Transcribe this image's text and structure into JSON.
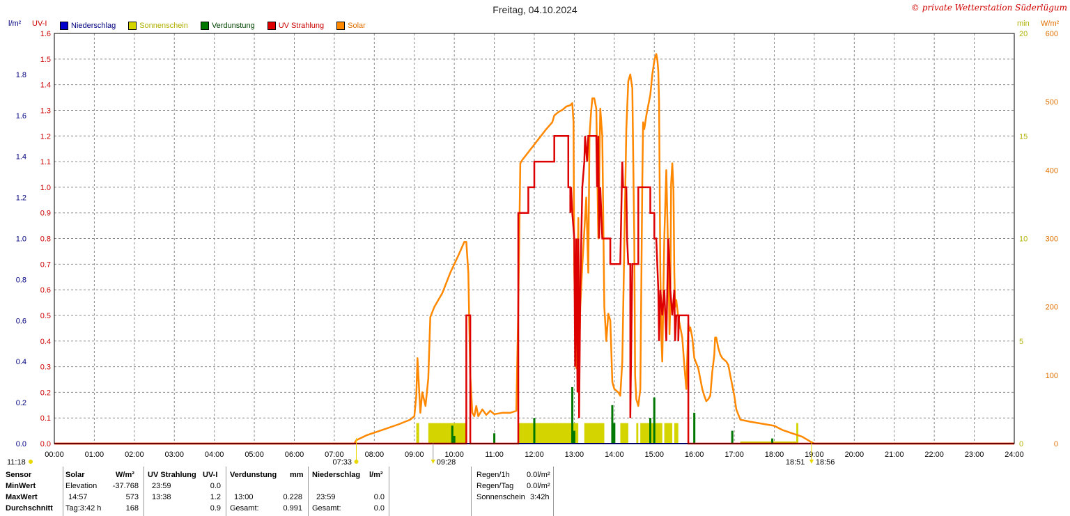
{
  "header": {
    "title": "Freitag, 04.10.2024",
    "copyright": "© private Wetterstation Süderlügum"
  },
  "axes": {
    "left_outer_unit": "l/m²",
    "left_inner_unit": "UV-I",
    "right_inner_unit": "min",
    "right_outer_unit": "W/m²",
    "left_outer_ticks": [
      "0.0",
      "0.2",
      "0.4",
      "0.6",
      "0.8",
      "1.0",
      "1.2",
      "1.4",
      "1.6",
      "1.8"
    ],
    "left_inner_ticks": [
      "0.0",
      "0.1",
      "0.2",
      "0.3",
      "0.4",
      "0.5",
      "0.6",
      "0.7",
      "0.8",
      "0.9",
      "1.0",
      "1.1",
      "1.2",
      "1.3",
      "1.4",
      "1.5",
      "1.6"
    ],
    "right_inner_ticks": [
      "0",
      "5",
      "10",
      "15",
      "20"
    ],
    "right_outer_ticks": [
      "0",
      "100",
      "200",
      "300",
      "400",
      "500",
      "600"
    ],
    "x_ticks": [
      "00:00",
      "01:00",
      "02:00",
      "03:00",
      "04:00",
      "05:00",
      "06:00",
      "07:00",
      "08:00",
      "09:00",
      "10:00",
      "11:00",
      "12:00",
      "13:00",
      "14:00",
      "15:00",
      "16:00",
      "17:00",
      "18:00",
      "19:00",
      "20:00",
      "21:00",
      "22:00",
      "23:00",
      "24:00"
    ],
    "markers": {
      "current_time": "11:18",
      "sunrise": "07:33",
      "sun_event_1": "09:28",
      "sun_event_2": "18:51",
      "sunset": "18:56"
    }
  },
  "colors": {
    "niederschlag": "#0000cc",
    "sonnenschein": "#d4d400",
    "verdunstung": "#007700",
    "uv": "#dd0000",
    "solar": "#ff8800",
    "grid": "#888888"
  },
  "legend": [
    {
      "name": "Niederschlag",
      "color": "#0000cc",
      "text_color": "#000080"
    },
    {
      "name": "Sonnenschein",
      "color": "#d4d400",
      "text_color": "#b0b000"
    },
    {
      "name": "Verdunstung",
      "color": "#007700",
      "text_color": "#004400"
    },
    {
      "name": "UV Strahlung",
      "color": "#dd0000",
      "text_color": "#cc0000"
    },
    {
      "name": "Solar",
      "color": "#ff8800",
      "text_color": "#e07000"
    }
  ],
  "chart_data": {
    "type": "line",
    "title": "Freitag, 04.10.2024",
    "x_unit": "hours",
    "xlim": [
      0,
      24
    ],
    "solar_ylim": [
      0,
      600
    ],
    "uv_ylim": [
      0,
      1.6
    ],
    "sunshine_ylim": [
      0,
      20
    ],
    "rain_ylim": [
      0,
      2.0
    ],
    "series": [
      {
        "name": "Solar",
        "unit": "W/m²",
        "points": [
          [
            0,
            0
          ],
          [
            7.5,
            0
          ],
          [
            7.55,
            5
          ],
          [
            7.8,
            12
          ],
          [
            8.2,
            20
          ],
          [
            8.6,
            28
          ],
          [
            8.9,
            35
          ],
          [
            9.0,
            40
          ],
          [
            9.05,
            70
          ],
          [
            9.08,
            125
          ],
          [
            9.12,
            80
          ],
          [
            9.15,
            45
          ],
          [
            9.2,
            75
          ],
          [
            9.28,
            55
          ],
          [
            9.35,
            95
          ],
          [
            9.4,
            185
          ],
          [
            9.5,
            200
          ],
          [
            9.7,
            220
          ],
          [
            9.9,
            250
          ],
          [
            10.1,
            275
          ],
          [
            10.25,
            295
          ],
          [
            10.3,
            295
          ],
          [
            10.35,
            250
          ],
          [
            10.4,
            100
          ],
          [
            10.45,
            45
          ],
          [
            10.5,
            40
          ],
          [
            10.55,
            55
          ],
          [
            10.6,
            40
          ],
          [
            10.7,
            50
          ],
          [
            10.8,
            42
          ],
          [
            10.9,
            48
          ],
          [
            11.0,
            43
          ],
          [
            11.2,
            45
          ],
          [
            11.4,
            45
          ],
          [
            11.55,
            48
          ],
          [
            11.6,
            200
          ],
          [
            11.65,
            410
          ],
          [
            11.7,
            415
          ],
          [
            11.9,
            430
          ],
          [
            12.1,
            445
          ],
          [
            12.3,
            460
          ],
          [
            12.45,
            470
          ],
          [
            12.5,
            480
          ],
          [
            12.6,
            485
          ],
          [
            12.7,
            488
          ],
          [
            12.8,
            493
          ],
          [
            12.9,
            495
          ],
          [
            12.95,
            498
          ],
          [
            12.98,
            470
          ],
          [
            13.0,
            250
          ],
          [
            13.05,
            110
          ],
          [
            13.1,
            330
          ],
          [
            13.12,
            120
          ],
          [
            13.15,
            200
          ],
          [
            13.2,
            260
          ],
          [
            13.3,
            360
          ],
          [
            13.35,
            250
          ],
          [
            13.38,
            450
          ],
          [
            13.42,
            485
          ],
          [
            13.45,
            505
          ],
          [
            13.5,
            505
          ],
          [
            13.55,
            490
          ],
          [
            13.6,
            300
          ],
          [
            13.65,
            490
          ],
          [
            13.7,
            450
          ],
          [
            13.75,
            200
          ],
          [
            13.8,
            150
          ],
          [
            13.85,
            190
          ],
          [
            13.9,
            180
          ],
          [
            13.95,
            90
          ],
          [
            14.0,
            80
          ],
          [
            14.1,
            75
          ],
          [
            14.15,
            70
          ],
          [
            14.2,
            120
          ],
          [
            14.3,
            460
          ],
          [
            14.35,
            530
          ],
          [
            14.4,
            540
          ],
          [
            14.45,
            520
          ],
          [
            14.5,
            300
          ],
          [
            14.52,
            100
          ],
          [
            14.55,
            65
          ],
          [
            14.6,
            55
          ],
          [
            14.65,
            80
          ],
          [
            14.7,
            380
          ],
          [
            14.72,
            470
          ],
          [
            14.75,
            460
          ],
          [
            14.8,
            480
          ],
          [
            14.9,
            510
          ],
          [
            14.95,
            540
          ],
          [
            15.0,
            560
          ],
          [
            15.02,
            565
          ],
          [
            15.05,
            570
          ],
          [
            15.08,
            560
          ],
          [
            15.1,
            545
          ],
          [
            15.12,
            500
          ],
          [
            15.15,
            250
          ],
          [
            15.18,
            150
          ],
          [
            15.2,
            120
          ],
          [
            15.25,
            300
          ],
          [
            15.3,
            400
          ],
          [
            15.35,
            270
          ],
          [
            15.38,
            160
          ],
          [
            15.4,
            200
          ],
          [
            15.42,
            380
          ],
          [
            15.45,
            410
          ],
          [
            15.48,
            370
          ],
          [
            15.5,
            250
          ],
          [
            15.52,
            200
          ],
          [
            15.55,
            210
          ],
          [
            15.6,
            185
          ],
          [
            15.65,
            170
          ],
          [
            15.7,
            155
          ],
          [
            15.75,
            115
          ],
          [
            15.8,
            80
          ],
          [
            15.85,
            175
          ],
          [
            15.88,
            165
          ],
          [
            15.9,
            170
          ],
          [
            15.95,
            155
          ],
          [
            16.0,
            125
          ],
          [
            16.1,
            110
          ],
          [
            16.2,
            80
          ],
          [
            16.25,
            70
          ],
          [
            16.3,
            62
          ],
          [
            16.35,
            65
          ],
          [
            16.4,
            70
          ],
          [
            16.45,
            105
          ],
          [
            16.5,
            130
          ],
          [
            16.52,
            155
          ],
          [
            16.55,
            155
          ],
          [
            16.6,
            140
          ],
          [
            16.65,
            130
          ],
          [
            16.7,
            125
          ],
          [
            16.8,
            120
          ],
          [
            16.85,
            115
          ],
          [
            16.9,
            100
          ],
          [
            17.0,
            70
          ],
          [
            17.05,
            50
          ],
          [
            17.15,
            35
          ],
          [
            17.4,
            32
          ],
          [
            17.8,
            28
          ],
          [
            18.0,
            26
          ],
          [
            18.2,
            20
          ],
          [
            18.45,
            15
          ],
          [
            18.6,
            12
          ],
          [
            18.7,
            10
          ],
          [
            18.9,
            3
          ],
          [
            19.0,
            0
          ],
          [
            24.0,
            0
          ]
        ]
      },
      {
        "name": "UV Strahlung",
        "unit": "UV-I",
        "points": [
          [
            0,
            0
          ],
          [
            10.3,
            0
          ],
          [
            10.3,
            0.5
          ],
          [
            10.4,
            0.5
          ],
          [
            10.4,
            0
          ],
          [
            11.6,
            0
          ],
          [
            11.6,
            0.9
          ],
          [
            11.85,
            0.9
          ],
          [
            11.85,
            1.0
          ],
          [
            12.0,
            1.0
          ],
          [
            12.0,
            1.1
          ],
          [
            12.5,
            1.1
          ],
          [
            12.5,
            1.2
          ],
          [
            12.85,
            1.2
          ],
          [
            12.85,
            1.0
          ],
          [
            12.9,
            1.0
          ],
          [
            12.9,
            0.9
          ],
          [
            12.92,
            1.0
          ],
          [
            12.95,
            0.9
          ],
          [
            13.0,
            0.8
          ],
          [
            13.02,
            0.3
          ],
          [
            13.05,
            0.8
          ],
          [
            13.08,
            0.2
          ],
          [
            13.1,
            0.8
          ],
          [
            13.12,
            0.1
          ],
          [
            13.15,
            0.6
          ],
          [
            13.2,
            1.0
          ],
          [
            13.25,
            1.1
          ],
          [
            13.27,
            1.2
          ],
          [
            13.32,
            1.1
          ],
          [
            13.35,
            1.2
          ],
          [
            13.55,
            1.2
          ],
          [
            13.57,
            1.0
          ],
          [
            13.6,
            1.2
          ],
          [
            13.62,
            0.8
          ],
          [
            13.65,
            1.0
          ],
          [
            13.7,
            0.8
          ],
          [
            13.9,
            0.8
          ],
          [
            13.9,
            0.7
          ],
          [
            14.15,
            0.7
          ],
          [
            14.2,
            1.1
          ],
          [
            14.22,
            1.0
          ],
          [
            14.3,
            1.0
          ],
          [
            14.32,
            0.8
          ],
          [
            14.35,
            0.7
          ],
          [
            14.4,
            0.7
          ],
          [
            14.4,
            0.1
          ],
          [
            14.45,
            0.7
          ],
          [
            14.6,
            0.7
          ],
          [
            14.6,
            1.0
          ],
          [
            14.9,
            1.0
          ],
          [
            14.9,
            0.9
          ],
          [
            15.0,
            0.9
          ],
          [
            15.0,
            0.8
          ],
          [
            15.05,
            0.8
          ],
          [
            15.1,
            0.6
          ],
          [
            15.12,
            0.4
          ],
          [
            15.15,
            0.6
          ],
          [
            15.2,
            0.5
          ],
          [
            15.25,
            0.6
          ],
          [
            15.3,
            0.4
          ],
          [
            15.35,
            0.8
          ],
          [
            15.38,
            0.7
          ],
          [
            15.4,
            0.6
          ],
          [
            15.45,
            0.5
          ],
          [
            15.5,
            0.6
          ],
          [
            15.52,
            0.4
          ],
          [
            15.55,
            0.5
          ],
          [
            15.6,
            0.5
          ],
          [
            15.6,
            0.4
          ],
          [
            15.62,
            0.5
          ],
          [
            15.85,
            0.5
          ],
          [
            15.85,
            0
          ],
          [
            24.0,
            0
          ]
        ]
      },
      {
        "name": "Sonnenschein",
        "unit": "min",
        "intervals": [
          [
            9.05,
            9.12,
            1
          ],
          [
            9.35,
            10.3,
            1
          ],
          [
            11.6,
            13.1,
            1
          ],
          [
            13.25,
            13.75,
            1
          ],
          [
            14.15,
            14.35,
            1
          ],
          [
            14.55,
            14.6,
            1
          ],
          [
            14.65,
            15.0,
            1
          ],
          [
            15.0,
            15.2,
            1
          ],
          [
            15.25,
            15.45,
            1
          ],
          [
            15.5,
            15.6,
            1
          ],
          [
            17.15,
            18.55,
            0.1
          ],
          [
            18.55,
            18.6,
            1
          ]
        ]
      },
      {
        "name": "Verdunstung",
        "unit": "mm",
        "spikes": [
          [
            9.95,
            0.07
          ],
          [
            10.0,
            0.03
          ],
          [
            11.0,
            0.04
          ],
          [
            12.0,
            0.1
          ],
          [
            12.95,
            0.22
          ],
          [
            13.0,
            0.05
          ],
          [
            13.95,
            0.15
          ],
          [
            14.0,
            0.08
          ],
          [
            14.9,
            0.1
          ],
          [
            15.0,
            0.18
          ],
          [
            16.0,
            0.12
          ],
          [
            16.95,
            0.05
          ],
          [
            17.95,
            0.02
          ]
        ]
      },
      {
        "name": "Niederschlag",
        "unit": "l/m²",
        "points": [
          [
            0,
            0
          ],
          [
            24,
            0
          ]
        ]
      }
    ]
  },
  "stats": {
    "col_sensor": {
      "header": "Sensor",
      "row1": "MinWert",
      "row2": "MaxWert",
      "row3": "Durchschnitt"
    },
    "col_solar": {
      "header": "Solar",
      "unit": "W/m²",
      "row1_label": "Elevation",
      "row1_value": "-37.768",
      "row2_label": "14:57",
      "row2_value": "573",
      "row3_label": "Tag:3:42 h",
      "row3_value": "168"
    },
    "col_uv": {
      "header": "UV Strahlung",
      "unit": "UV-I",
      "row1_label": "23:59",
      "row1_value": "0.0",
      "row2_label": "13:38",
      "row2_value": "1.2",
      "row3_label": "",
      "row3_value": "0.9"
    },
    "col_verd": {
      "header": "Verdunstung",
      "unit": "mm",
      "row1_label": "",
      "row1_value": "",
      "row2_label": "13:00",
      "row2_value": "0.228",
      "row3_label": "Gesamt:",
      "row3_value": "0.991"
    },
    "col_rain": {
      "header": "Niederschlag",
      "unit": "l/m²",
      "row1_label": "",
      "row1_value": "",
      "row2_label": "23:59",
      "row2_value": "0.0",
      "row3_label": "Gesamt:",
      "row3_value": "0.0"
    },
    "col_summary": {
      "regen_h_label": "Regen/1h",
      "regen_h_value": "0.0l/m²",
      "regen_tag_label": "Regen/Tag",
      "regen_tag_value": "0.0l/m²",
      "sonne_label": "Sonnenschein",
      "sonne_value": "3:42h"
    }
  }
}
